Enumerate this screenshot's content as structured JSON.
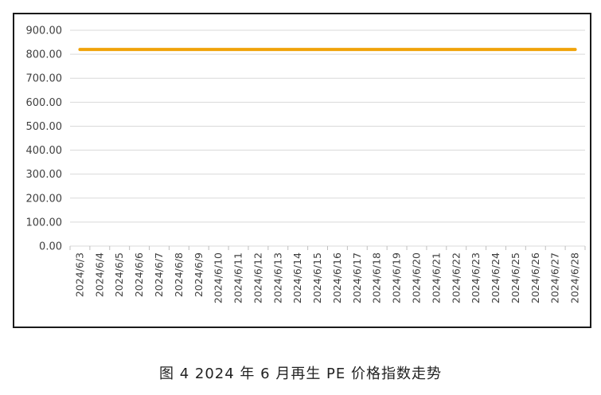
{
  "caption": "图 4  2024 年 6 月再生 PE 价格指数走势",
  "chart_data": {
    "type": "line",
    "title": "",
    "xlabel": "",
    "ylabel": "",
    "ylim": [
      0,
      900
    ],
    "yticks": [
      "0.00",
      "100.00",
      "200.00",
      "300.00",
      "400.00",
      "500.00",
      "600.00",
      "700.00",
      "800.00",
      "900.00"
    ],
    "grid": true,
    "categories": [
      "2024/6/3",
      "2024/6/4",
      "2024/6/5",
      "2024/6/6",
      "2024/6/7",
      "2024/6/8",
      "2024/6/9",
      "2024/6/10",
      "2024/6/11",
      "2024/6/12",
      "2024/6/13",
      "2024/6/14",
      "2024/6/15",
      "2024/6/16",
      "2024/6/17",
      "2024/6/18",
      "2024/6/19",
      "2024/6/20",
      "2024/6/21",
      "2024/6/22",
      "2024/6/23",
      "2024/6/24",
      "2024/6/25",
      "2024/6/26",
      "2024/6/27",
      "2024/6/28"
    ],
    "series": [
      {
        "color": "#f0a30a",
        "values": [
          820,
          820,
          820,
          820,
          820,
          820,
          820,
          820,
          820,
          820,
          820,
          820,
          820,
          820,
          820,
          820,
          820,
          820,
          820,
          820,
          820,
          820,
          820,
          820,
          820,
          820
        ]
      }
    ]
  }
}
